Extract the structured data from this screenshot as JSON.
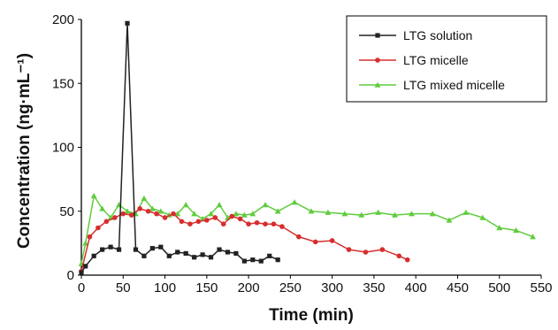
{
  "chart_data": {
    "type": "line",
    "xlabel": "Time (min)",
    "ylabel": "Concentration (ng·mL⁻¹)",
    "xlim": [
      0,
      550
    ],
    "ylim": [
      0,
      200
    ],
    "xticks": [
      "0",
      "50",
      "100",
      "150",
      "200",
      "250",
      "300",
      "350",
      "400",
      "450",
      "500",
      "550"
    ],
    "yticks": [
      "0",
      "50",
      "100",
      "150",
      "200"
    ],
    "grid": false,
    "legend_position": "top-right",
    "series": [
      {
        "name": "LTG solution",
        "color": "#222222",
        "marker": "square",
        "x": [
          0,
          5,
          15,
          25,
          35,
          45,
          55,
          65,
          75,
          85,
          95,
          105,
          115,
          125,
          135,
          145,
          155,
          165,
          175,
          185,
          195,
          205,
          215,
          225,
          235
        ],
        "y": [
          2,
          7,
          15,
          20,
          22,
          20,
          197,
          20,
          15,
          21,
          22,
          15,
          18,
          17,
          14,
          16,
          14,
          20,
          18,
          17,
          11,
          12,
          11,
          15,
          12
        ]
      },
      {
        "name": "LTG micelle",
        "color": "#d62e2e",
        "marker": "circle",
        "x": [
          0,
          10,
          20,
          30,
          40,
          50,
          60,
          70,
          80,
          90,
          100,
          110,
          120,
          130,
          140,
          150,
          160,
          170,
          180,
          190,
          200,
          210,
          220,
          230,
          240,
          260,
          280,
          300,
          320,
          340,
          360,
          380,
          390
        ],
        "y": [
          3,
          30,
          37,
          42,
          45,
          48,
          47,
          52,
          50,
          48,
          45,
          48,
          42,
          40,
          42,
          43,
          45,
          40,
          46,
          44,
          40,
          41,
          40,
          40,
          38,
          30,
          26,
          27,
          20,
          18,
          20,
          15,
          12
        ]
      },
      {
        "name": "LTG mixed micelle",
        "color": "#5fcc3c",
        "marker": "triangle",
        "x": [
          0,
          5,
          15,
          25,
          35,
          45,
          55,
          65,
          75,
          85,
          95,
          105,
          115,
          125,
          135,
          145,
          155,
          165,
          175,
          185,
          195,
          205,
          220,
          235,
          255,
          275,
          295,
          315,
          335,
          355,
          375,
          395,
          420,
          440,
          460,
          480,
          500,
          520,
          540
        ],
        "y": [
          9,
          25,
          62,
          52,
          45,
          55,
          50,
          48,
          60,
          52,
          50,
          47,
          48,
          55,
          48,
          44,
          48,
          55,
          45,
          48,
          47,
          48,
          55,
          50,
          57,
          50,
          49,
          48,
          47,
          49,
          47,
          48,
          48,
          43,
          49,
          45,
          37,
          35,
          30
        ]
      }
    ]
  }
}
